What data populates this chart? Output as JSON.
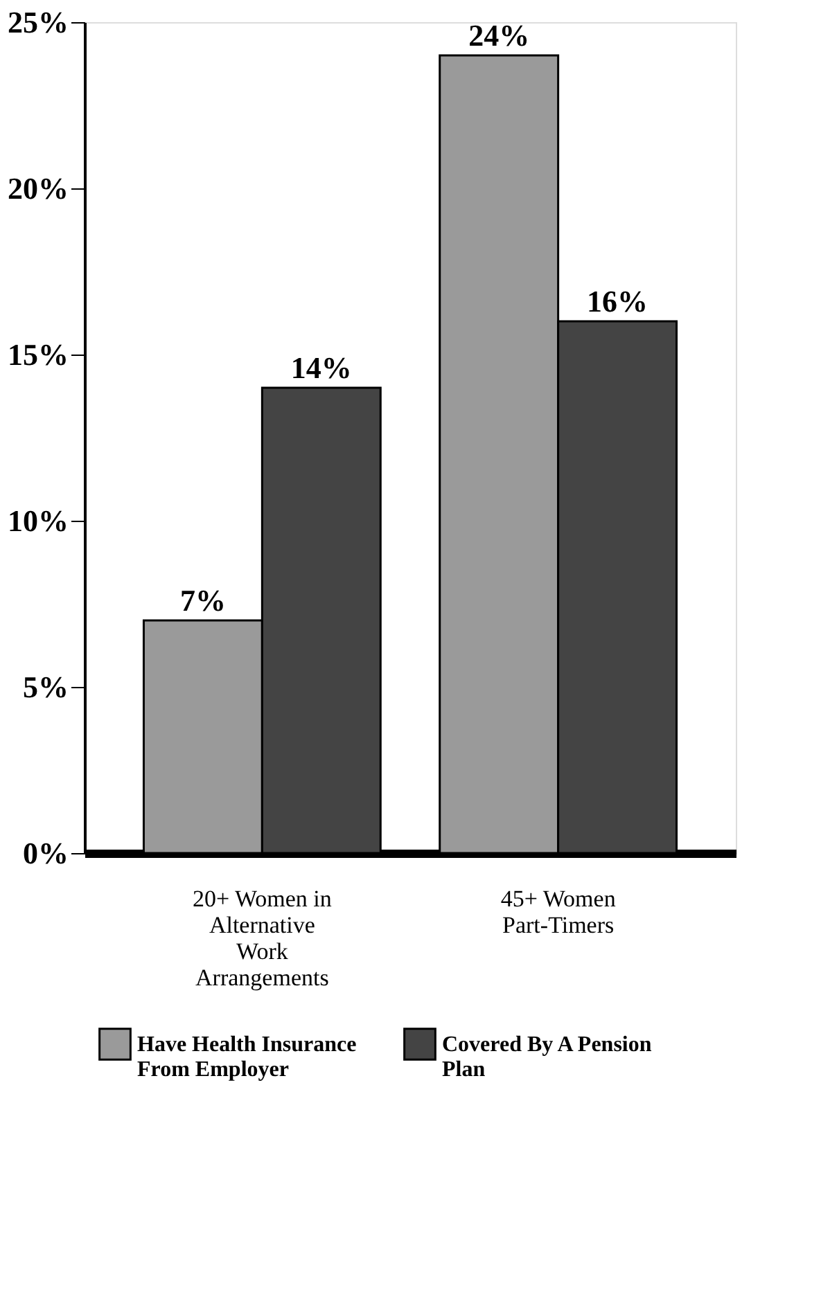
{
  "chart_data": {
    "type": "bar",
    "categories": [
      "20+ Women in Alternative Work Arrangements",
      "45+ Women Part-Timers"
    ],
    "series": [
      {
        "name": "Have Health Insurance From Employer",
        "color": "#9a9a9a",
        "values": [
          7,
          24
        ],
        "value_labels": [
          "7%",
          "24%"
        ]
      },
      {
        "name": "Covered By A Pension Plan",
        "color": "#444444",
        "values": [
          14,
          16
        ],
        "value_labels": [
          "14%",
          "16%"
        ]
      }
    ],
    "ylim": [
      0,
      25
    ],
    "yticks": [
      {
        "value": 0,
        "label": "0%"
      },
      {
        "value": 5,
        "label": "5%"
      },
      {
        "value": 10,
        "label": "10%"
      },
      {
        "value": 15,
        "label": "15%"
      },
      {
        "value": 20,
        "label": "20%"
      },
      {
        "value": 25,
        "label": "25%"
      }
    ],
    "grid": false,
    "legend": "bottom"
  }
}
